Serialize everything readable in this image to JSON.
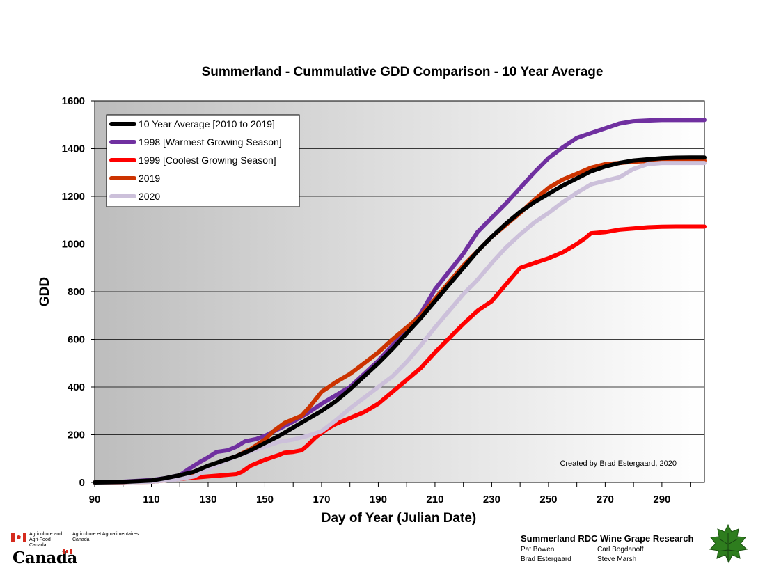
{
  "chart_data": {
    "type": "line",
    "title": "Summerland  -  Cummulative GDD Comparison - 10 Year Average",
    "xlabel": "Day of Year (Julian Date)",
    "ylabel": "GDD",
    "xlim": [
      90,
      305
    ],
    "ylim": [
      0,
      1600
    ],
    "x_ticks": [
      90,
      110,
      130,
      150,
      170,
      190,
      210,
      230,
      250,
      270,
      290
    ],
    "y_ticks": [
      0,
      200,
      400,
      600,
      800,
      1000,
      1200,
      1400,
      1600
    ],
    "grid": "horizontal",
    "legend_position": "top-left",
    "annotation": "Created by Brad Estergaard, 2020",
    "series": [
      {
        "name": "10 Year Average [2010 to 2019]",
        "color": "#000000",
        "points": [
          [
            90,
            0
          ],
          [
            100,
            2
          ],
          [
            110,
            8
          ],
          [
            115,
            18
          ],
          [
            120,
            30
          ],
          [
            125,
            45
          ],
          [
            130,
            70
          ],
          [
            135,
            90
          ],
          [
            140,
            110
          ],
          [
            145,
            135
          ],
          [
            150,
            165
          ],
          [
            155,
            195
          ],
          [
            160,
            230
          ],
          [
            165,
            265
          ],
          [
            170,
            300
          ],
          [
            175,
            340
          ],
          [
            180,
            390
          ],
          [
            185,
            445
          ],
          [
            190,
            500
          ],
          [
            195,
            560
          ],
          [
            200,
            625
          ],
          [
            205,
            690
          ],
          [
            210,
            760
          ],
          [
            215,
            830
          ],
          [
            220,
            900
          ],
          [
            225,
            970
          ],
          [
            230,
            1030
          ],
          [
            235,
            1085
          ],
          [
            240,
            1135
          ],
          [
            245,
            1175
          ],
          [
            250,
            1210
          ],
          [
            255,
            1245
          ],
          [
            260,
            1275
          ],
          [
            265,
            1305
          ],
          [
            270,
            1325
          ],
          [
            275,
            1340
          ],
          [
            280,
            1350
          ],
          [
            285,
            1355
          ],
          [
            290,
            1360
          ],
          [
            295,
            1362
          ],
          [
            300,
            1363
          ],
          [
            305,
            1363
          ]
        ]
      },
      {
        "name": "1998 [Warmest Growing Season]",
        "color": "#7030a0",
        "points": [
          [
            90,
            0
          ],
          [
            100,
            3
          ],
          [
            110,
            10
          ],
          [
            115,
            18
          ],
          [
            120,
            30
          ],
          [
            123,
            55
          ],
          [
            127,
            85
          ],
          [
            130,
            105
          ],
          [
            133,
            128
          ],
          [
            137,
            135
          ],
          [
            140,
            150
          ],
          [
            143,
            172
          ],
          [
            147,
            182
          ],
          [
            150,
            195
          ],
          [
            155,
            225
          ],
          [
            160,
            255
          ],
          [
            165,
            290
          ],
          [
            170,
            330
          ],
          [
            175,
            365
          ],
          [
            180,
            400
          ],
          [
            185,
            455
          ],
          [
            190,
            510
          ],
          [
            195,
            575
          ],
          [
            200,
            635
          ],
          [
            205,
            710
          ],
          [
            210,
            810
          ],
          [
            215,
            885
          ],
          [
            220,
            960
          ],
          [
            225,
            1050
          ],
          [
            230,
            1110
          ],
          [
            235,
            1170
          ],
          [
            240,
            1235
          ],
          [
            245,
            1300
          ],
          [
            250,
            1360
          ],
          [
            255,
            1405
          ],
          [
            260,
            1445
          ],
          [
            265,
            1465
          ],
          [
            270,
            1485
          ],
          [
            275,
            1505
          ],
          [
            280,
            1515
          ],
          [
            285,
            1518
          ],
          [
            290,
            1520
          ],
          [
            295,
            1520
          ],
          [
            305,
            1520
          ]
        ]
      },
      {
        "name": "1999 [Coolest Growing Season]",
        "color": "#ff0000",
        "points": [
          [
            90,
            0
          ],
          [
            100,
            1
          ],
          [
            110,
            5
          ],
          [
            115,
            10
          ],
          [
            120,
            15
          ],
          [
            125,
            20
          ],
          [
            130,
            25
          ],
          [
            135,
            30
          ],
          [
            140,
            35
          ],
          [
            142,
            45
          ],
          [
            145,
            70
          ],
          [
            150,
            95
          ],
          [
            155,
            115
          ],
          [
            157,
            125
          ],
          [
            160,
            128
          ],
          [
            163,
            135
          ],
          [
            165,
            155
          ],
          [
            168,
            190
          ],
          [
            172,
            225
          ],
          [
            175,
            245
          ],
          [
            180,
            270
          ],
          [
            185,
            295
          ],
          [
            190,
            330
          ],
          [
            195,
            380
          ],
          [
            200,
            430
          ],
          [
            205,
            480
          ],
          [
            210,
            545
          ],
          [
            215,
            605
          ],
          [
            220,
            665
          ],
          [
            225,
            720
          ],
          [
            230,
            760
          ],
          [
            235,
            830
          ],
          [
            240,
            900
          ],
          [
            245,
            920
          ],
          [
            250,
            940
          ],
          [
            255,
            965
          ],
          [
            260,
            1000
          ],
          [
            263,
            1025
          ],
          [
            265,
            1045
          ],
          [
            270,
            1050
          ],
          [
            275,
            1060
          ],
          [
            280,
            1065
          ],
          [
            285,
            1070
          ],
          [
            290,
            1072
          ],
          [
            295,
            1073
          ],
          [
            305,
            1073
          ]
        ]
      },
      {
        "name": "2019",
        "color": "#cc3300",
        "points": [
          [
            90,
            0
          ],
          [
            100,
            1
          ],
          [
            110,
            3
          ],
          [
            115,
            8
          ],
          [
            120,
            20
          ],
          [
            125,
            40
          ],
          [
            130,
            65
          ],
          [
            135,
            90
          ],
          [
            140,
            110
          ],
          [
            145,
            140
          ],
          [
            150,
            180
          ],
          [
            153,
            215
          ],
          [
            157,
            250
          ],
          [
            160,
            265
          ],
          [
            163,
            280
          ],
          [
            166,
            320
          ],
          [
            170,
            380
          ],
          [
            175,
            420
          ],
          [
            180,
            455
          ],
          [
            185,
            500
          ],
          [
            190,
            545
          ],
          [
            195,
            600
          ],
          [
            200,
            650
          ],
          [
            205,
            700
          ],
          [
            210,
            770
          ],
          [
            215,
            840
          ],
          [
            220,
            910
          ],
          [
            225,
            970
          ],
          [
            230,
            1030
          ],
          [
            235,
            1080
          ],
          [
            240,
            1130
          ],
          [
            245,
            1185
          ],
          [
            250,
            1235
          ],
          [
            255,
            1270
          ],
          [
            260,
            1295
          ],
          [
            265,
            1320
          ],
          [
            270,
            1335
          ],
          [
            275,
            1340
          ],
          [
            280,
            1345
          ],
          [
            285,
            1348
          ],
          [
            290,
            1350
          ],
          [
            295,
            1350
          ],
          [
            305,
            1350
          ]
        ]
      },
      {
        "name": "2020",
        "color": "#ccc0da",
        "points": [
          [
            90,
            0
          ],
          [
            100,
            1
          ],
          [
            110,
            3
          ],
          [
            115,
            8
          ],
          [
            120,
            15
          ],
          [
            125,
            25
          ],
          [
            130,
            55
          ],
          [
            135,
            85
          ],
          [
            140,
            110
          ],
          [
            145,
            130
          ],
          [
            150,
            150
          ],
          [
            155,
            170
          ],
          [
            160,
            180
          ],
          [
            165,
            195
          ],
          [
            170,
            215
          ],
          [
            175,
            260
          ],
          [
            180,
            310
          ],
          [
            185,
            355
          ],
          [
            190,
            400
          ],
          [
            195,
            445
          ],
          [
            200,
            505
          ],
          [
            205,
            575
          ],
          [
            210,
            650
          ],
          [
            215,
            720
          ],
          [
            220,
            790
          ],
          [
            225,
            850
          ],
          [
            230,
            920
          ],
          [
            235,
            985
          ],
          [
            240,
            1040
          ],
          [
            245,
            1090
          ],
          [
            250,
            1130
          ],
          [
            255,
            1175
          ],
          [
            260,
            1215
          ],
          [
            265,
            1250
          ],
          [
            270,
            1265
          ],
          [
            275,
            1280
          ],
          [
            280,
            1315
          ],
          [
            285,
            1335
          ],
          [
            290,
            1340
          ],
          [
            295,
            1340
          ],
          [
            305,
            1340
          ]
        ]
      }
    ]
  },
  "footer": {
    "aafc_en": "Agriculture and Agri-Food Canada",
    "aafc_fr": "Agriculture et Agroalimentaires Canada",
    "wordmark": "Canada",
    "research_title": "Summerland RDC Wine Grape Research",
    "names": [
      "Pat Bowen",
      "Carl Bogdanoff",
      "Brad Estergaard",
      "Steve Marsh"
    ]
  }
}
